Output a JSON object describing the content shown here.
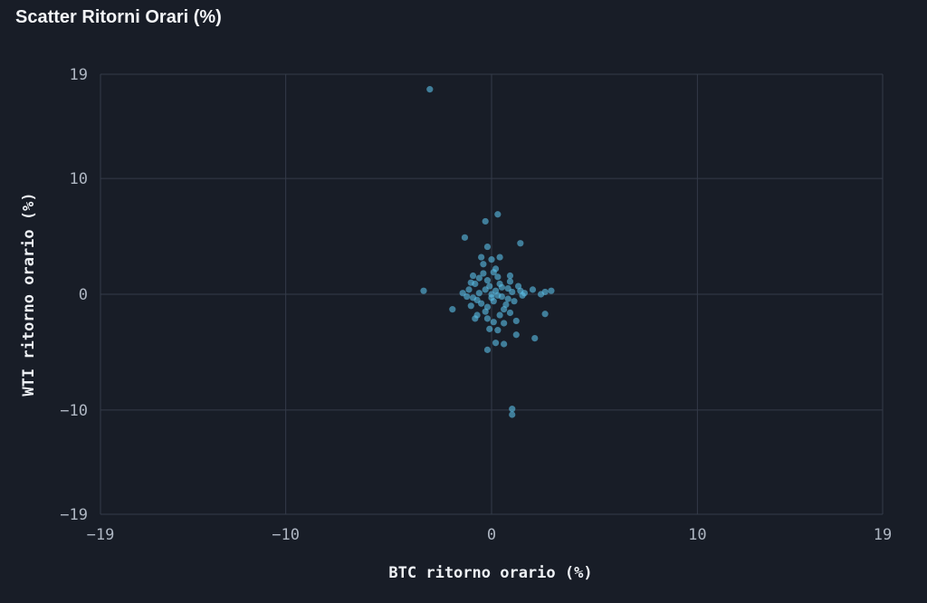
{
  "chart_data": {
    "type": "scatter",
    "title": "Scatter Ritorni Orari (%)",
    "xlabel": "BTC ritorno orario (%)",
    "ylabel": "WTI ritorno orario (%)",
    "xlim": [
      -19,
      19
    ],
    "ylim": [
      -19,
      19
    ],
    "x_ticks": [
      {
        "value": -19,
        "label": "−19"
      },
      {
        "value": -10,
        "label": "−10"
      },
      {
        "value": 0,
        "label": "0"
      },
      {
        "value": 10,
        "label": "10"
      },
      {
        "value": 19,
        "label": "19"
      }
    ],
    "y_ticks": [
      {
        "value": 19,
        "label": "19"
      },
      {
        "value": 10,
        "label": "10"
      },
      {
        "value": 0,
        "label": "0"
      },
      {
        "value": -10,
        "label": "−10"
      },
      {
        "value": -19,
        "label": "−19"
      }
    ],
    "grid": true,
    "colors": {
      "points": "#5bbfe8",
      "background": "#181d27",
      "grid": "#343b49"
    },
    "series": [
      {
        "points": [
          [
            -3.0,
            17.7
          ],
          [
            0.3,
            6.9
          ],
          [
            -0.3,
            6.3
          ],
          [
            -1.3,
            4.9
          ],
          [
            1.4,
            4.4
          ],
          [
            -0.2,
            4.1
          ],
          [
            0.4,
            3.2
          ],
          [
            0.0,
            3.0
          ],
          [
            -0.5,
            3.2
          ],
          [
            -0.4,
            2.6
          ],
          [
            -0.9,
            1.6
          ],
          [
            -1.0,
            1.0
          ],
          [
            -3.3,
            0.3
          ],
          [
            2.4,
            0.0
          ],
          [
            2.6,
            0.2
          ],
          [
            2.9,
            0.3
          ],
          [
            2.0,
            0.4
          ],
          [
            1.4,
            0.3
          ],
          [
            1.5,
            -0.1
          ],
          [
            -1.9,
            -1.3
          ],
          [
            -0.7,
            -1.8
          ],
          [
            -0.8,
            -2.1
          ],
          [
            -0.2,
            -2.1
          ],
          [
            0.1,
            -2.4
          ],
          [
            0.6,
            -2.5
          ],
          [
            0.9,
            -1.6
          ],
          [
            1.2,
            -2.3
          ],
          [
            2.6,
            -1.7
          ],
          [
            -0.1,
            -3.0
          ],
          [
            0.3,
            -3.1
          ],
          [
            1.2,
            -3.5
          ],
          [
            2.1,
            -3.8
          ],
          [
            0.2,
            -4.2
          ],
          [
            0.6,
            -4.3
          ],
          [
            -0.2,
            -4.8
          ],
          [
            1.0,
            -9.9
          ],
          [
            1.0,
            -10.4
          ],
          [
            0.0,
            0.0
          ],
          [
            0.2,
            0.3
          ],
          [
            -0.3,
            0.4
          ],
          [
            0.5,
            -0.2
          ],
          [
            -0.6,
            0.1
          ],
          [
            0.8,
            0.5
          ],
          [
            -0.9,
            -0.3
          ],
          [
            0.1,
            -0.6
          ],
          [
            0.4,
            0.9
          ],
          [
            -0.2,
            1.2
          ],
          [
            0.7,
            -0.9
          ],
          [
            -0.5,
            -0.8
          ],
          [
            1.0,
            0.2
          ],
          [
            -1.1,
            0.4
          ],
          [
            0.3,
            1.5
          ],
          [
            -0.4,
            1.8
          ],
          [
            0.9,
            1.1
          ],
          [
            -0.8,
            0.9
          ],
          [
            0.6,
            -1.3
          ],
          [
            -0.2,
            -1.1
          ],
          [
            1.1,
            -0.6
          ],
          [
            -1.2,
            -0.2
          ],
          [
            0.2,
            2.2
          ],
          [
            -0.1,
            0.7
          ],
          [
            0.5,
            0.6
          ],
          [
            -0.7,
            -0.5
          ],
          [
            0.0,
            -0.3
          ],
          [
            0.3,
            -0.1
          ],
          [
            1.3,
            0.7
          ],
          [
            -1.4,
            0.1
          ],
          [
            0.8,
            -0.4
          ],
          [
            -0.6,
            1.4
          ],
          [
            0.1,
            1.9
          ],
          [
            1.6,
            0.1
          ],
          [
            -0.3,
            -1.5
          ],
          [
            0.4,
            -1.8
          ],
          [
            -1.0,
            -1.0
          ],
          [
            0.9,
            1.6
          ]
        ]
      }
    ]
  }
}
